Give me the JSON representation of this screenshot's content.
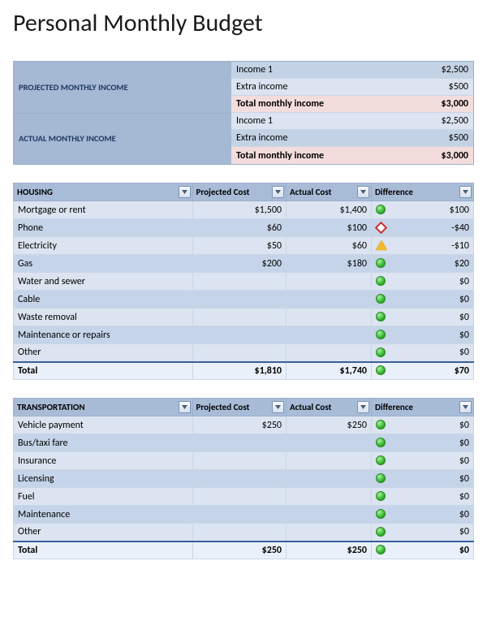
{
  "title": "Personal Monthly Budget",
  "colors": {
    "header_bg": "#a8bcd8",
    "row_odd": "#dbe4f0",
    "row_even": "#c5d4e8",
    "total_highlight": "#f3dcdc",
    "border": "#9ab0cc",
    "indicator_green": "#33b52e",
    "indicator_red": "#c62c2c",
    "indicator_yellow": "#f2b72b"
  },
  "income": [
    {
      "label": "PROJECTED MONTHLY INCOME",
      "rows": [
        {
          "name": "Income 1",
          "value": "$2,500",
          "style": "a"
        },
        {
          "name": "Extra income",
          "value": "$500",
          "style": "b"
        },
        {
          "name": "Total monthly income",
          "value": "$3,000",
          "style": "total"
        }
      ]
    },
    {
      "label": "ACTUAL MONTHLY INCOME",
      "rows": [
        {
          "name": "Income 1",
          "value": "$2,500",
          "style": "b"
        },
        {
          "name": "Extra income",
          "value": "$500",
          "style": "a"
        },
        {
          "name": "Total monthly income",
          "value": "$3,000",
          "style": "total"
        }
      ]
    }
  ],
  "column_headers": {
    "projected": "Projected Cost",
    "actual": "Actual Cost",
    "difference": "Difference"
  },
  "categories": [
    {
      "name": "HOUSING",
      "rows": [
        {
          "label": "Mortgage or rent",
          "projected": "$1,500",
          "actual": "$1,400",
          "diff": "$100",
          "ind": "green"
        },
        {
          "label": "Phone",
          "projected": "$60",
          "actual": "$100",
          "diff": "-$40",
          "ind": "red"
        },
        {
          "label": "Electricity",
          "projected": "$50",
          "actual": "$60",
          "diff": "-$10",
          "ind": "yellow"
        },
        {
          "label": "Gas",
          "projected": "$200",
          "actual": "$180",
          "diff": "$20",
          "ind": "green"
        },
        {
          "label": "Water and sewer",
          "projected": "",
          "actual": "",
          "diff": "$0",
          "ind": "green"
        },
        {
          "label": "Cable",
          "projected": "",
          "actual": "",
          "diff": "$0",
          "ind": "green"
        },
        {
          "label": "Waste removal",
          "projected": "",
          "actual": "",
          "diff": "$0",
          "ind": "green"
        },
        {
          "label": "Maintenance or repairs",
          "projected": "",
          "actual": "",
          "diff": "$0",
          "ind": "green"
        },
        {
          "label": "Other",
          "projected": "",
          "actual": "",
          "diff": "$0",
          "ind": "green"
        }
      ],
      "total": {
        "label": "Total",
        "projected": "$1,810",
        "actual": "$1,740",
        "diff": "$70",
        "ind": "green"
      }
    },
    {
      "name": "TRANSPORTATION",
      "rows": [
        {
          "label": "Vehicle payment",
          "projected": "$250",
          "actual": "$250",
          "diff": "$0",
          "ind": "green"
        },
        {
          "label": "Bus/taxi fare",
          "projected": "",
          "actual": "",
          "diff": "$0",
          "ind": "green"
        },
        {
          "label": "Insurance",
          "projected": "",
          "actual": "",
          "diff": "$0",
          "ind": "green"
        },
        {
          "label": "Licensing",
          "projected": "",
          "actual": "",
          "diff": "$0",
          "ind": "green"
        },
        {
          "label": "Fuel",
          "projected": "",
          "actual": "",
          "diff": "$0",
          "ind": "green"
        },
        {
          "label": "Maintenance",
          "projected": "",
          "actual": "",
          "diff": "$0",
          "ind": "green"
        },
        {
          "label": "Other",
          "projected": "",
          "actual": "",
          "diff": "$0",
          "ind": "green"
        }
      ],
      "total": {
        "label": "Total",
        "projected": "$250",
        "actual": "$250",
        "diff": "$0",
        "ind": "green"
      }
    }
  ]
}
